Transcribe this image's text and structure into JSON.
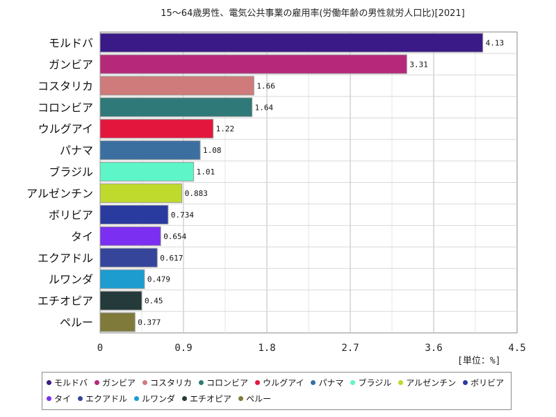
{
  "chart_data": {
    "type": "bar",
    "orientation": "horizontal",
    "title": "15～64歳男性、電気公共事業の雇用率(労働年齢の男性就労人口比)[2021]",
    "unit_label": "[単位：%]",
    "xlim": [
      0,
      4.5
    ],
    "x_ticks": [
      "0",
      "0.9",
      "1.8",
      "2.7",
      "3.6",
      "4.5"
    ],
    "x_tick_values": [
      0,
      0.9,
      1.8,
      2.7,
      3.6,
      4.5
    ],
    "grid": true,
    "legend_position": "bottom",
    "categories": [
      "モルドバ",
      "ガンビア",
      "コスタリカ",
      "コロンビア",
      "ウルグアイ",
      "パナマ",
      "ブラジル",
      "アルゼンチン",
      "ボリビア",
      "タイ",
      "エクアドル",
      "ルワンダ",
      "エチオピア",
      "ペルー"
    ],
    "values": [
      4.13,
      3.31,
      1.66,
      1.64,
      1.22,
      1.08,
      1.01,
      0.883,
      0.734,
      0.654,
      0.617,
      0.479,
      0.45,
      0.377
    ],
    "value_labels": [
      "4.13",
      "3.31",
      "1.66",
      "1.64",
      "1.22",
      "1.08",
      "1.01",
      "0.883",
      "0.734",
      "0.654",
      "0.617",
      "0.479",
      "0.45",
      "0.377"
    ],
    "colors": [
      "#3a1a86",
      "#b5287a",
      "#cf7b7b",
      "#2f7a78",
      "#e3173d",
      "#3b6fa0",
      "#5ef5c8",
      "#bfd92d",
      "#2a3ba0",
      "#7b2ff0",
      "#34459a",
      "#1c9ccf",
      "#253a3a",
      "#7f7a3a"
    ]
  }
}
